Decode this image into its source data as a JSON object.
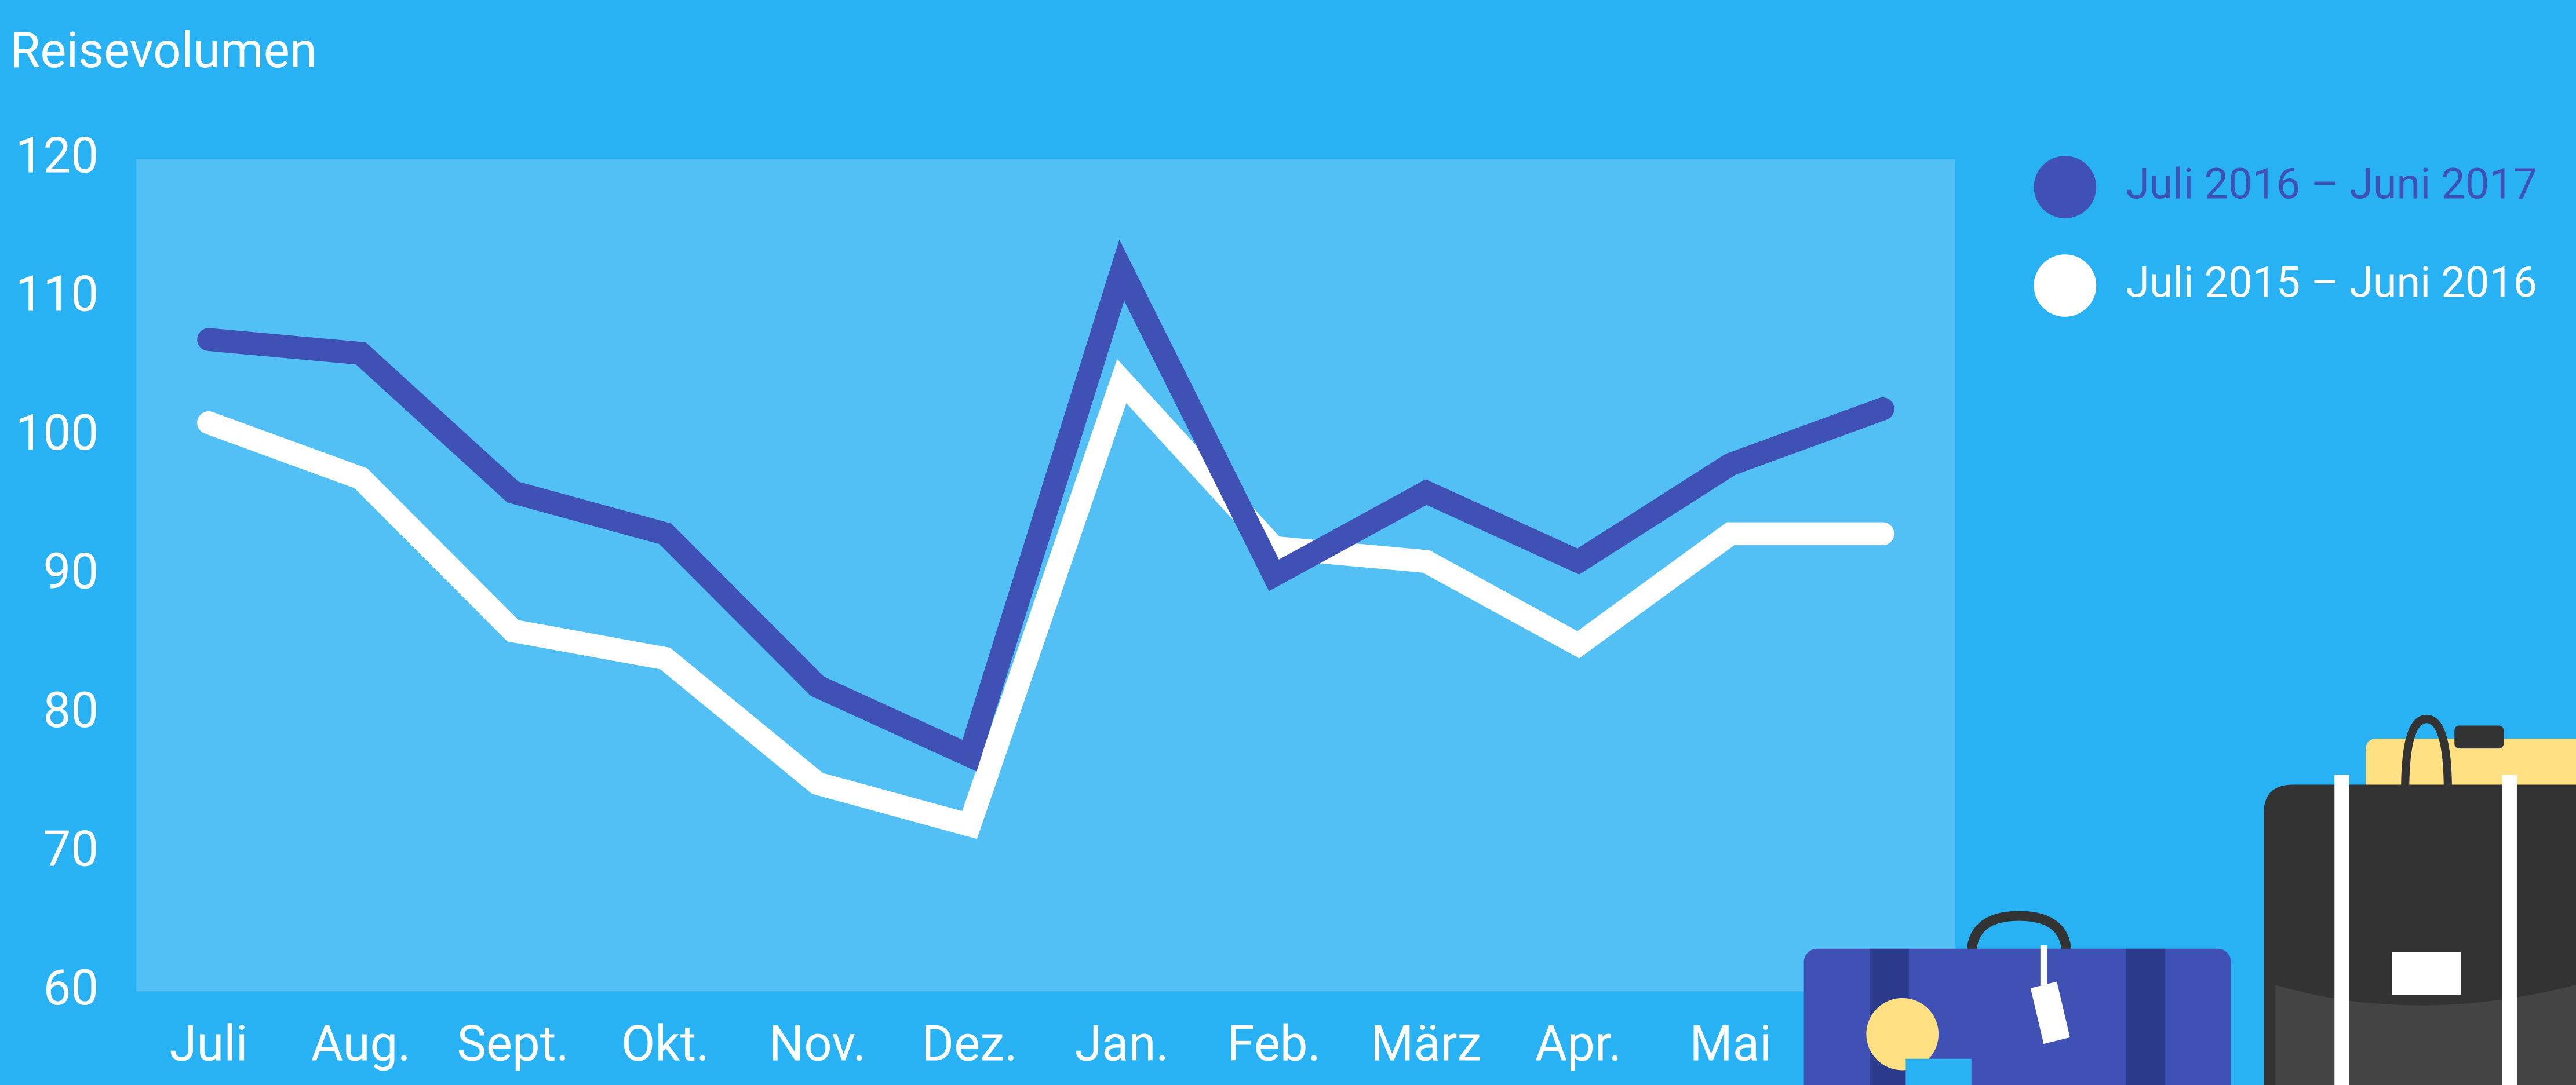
{
  "chart_data": {
    "type": "line",
    "title": "Reisevolumen",
    "categories": [
      "Juli",
      "Aug.",
      "Sept.",
      "Okt.",
      "Nov.",
      "Dez.",
      "Jan.",
      "Feb.",
      "März",
      "Apr.",
      "Mai",
      null
    ],
    "series": [
      {
        "name": "Juli 2016 – Juni 2017",
        "color": "#3f51b5",
        "values": [
          107,
          106,
          96,
          93,
          82,
          77,
          112,
          90,
          96,
          91,
          98,
          102
        ]
      },
      {
        "name": "Juli 2015 – Juni 2016",
        "color": "#ffffff",
        "values": [
          101,
          97,
          86,
          84,
          75,
          72,
          104,
          92,
          91,
          85,
          93,
          93
        ]
      }
    ],
    "ylim": [
      60,
      120
    ],
    "yticks": [
      60,
      70,
      80,
      90,
      100,
      110,
      120
    ],
    "legend": "top-right"
  }
}
